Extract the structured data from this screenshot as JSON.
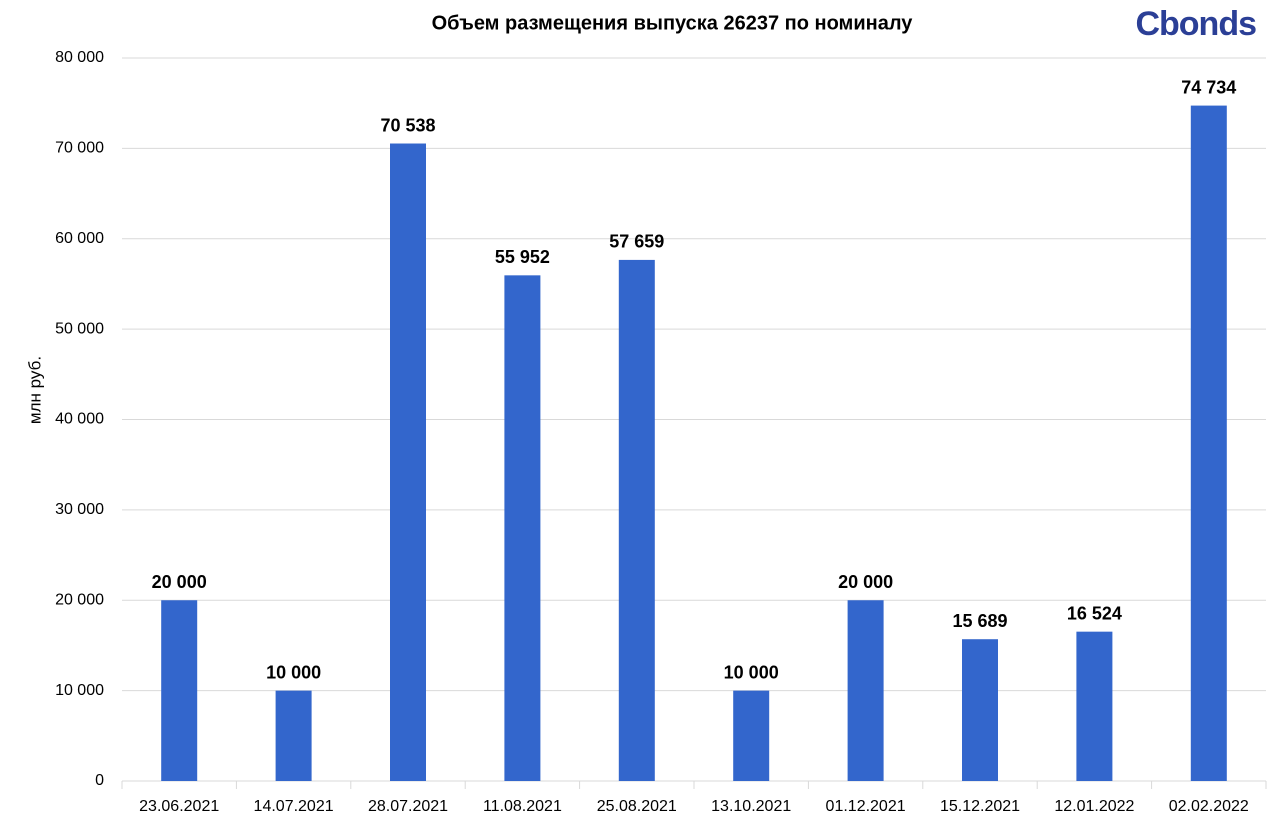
{
  "chart_data": {
    "type": "bar",
    "title": "Объем размещения выпуска 26237 по номиналу",
    "logo": "Cbonds",
    "ylabel": "млн руб.",
    "categories": [
      "23.06.2021",
      "14.07.2021",
      "28.07.2021",
      "11.08.2021",
      "25.08.2021",
      "13.10.2021",
      "01.12.2021",
      "15.12.2021",
      "12.01.2022",
      "02.02.2022"
    ],
    "values": [
      20000,
      10000,
      70538,
      55952,
      57659,
      10000,
      20000,
      15689,
      16524,
      74734
    ],
    "value_labels": [
      "20 000",
      "10 000",
      "70 538",
      "55 952",
      "57 659",
      "10 000",
      "20 000",
      "15 689",
      "16 524",
      "74 734"
    ],
    "color": "#3366cc",
    "ylim": [
      0,
      80000
    ],
    "yticks": [
      {
        "value": 0,
        "label": "0"
      },
      {
        "value": 10000,
        "label": "10 000"
      },
      {
        "value": 20000,
        "label": "20 000"
      },
      {
        "value": 30000,
        "label": "30 000"
      },
      {
        "value": 40000,
        "label": "40 000"
      },
      {
        "value": 50000,
        "label": "50 000"
      },
      {
        "value": 60000,
        "label": "60 000"
      },
      {
        "value": 70000,
        "label": "70 000"
      },
      {
        "value": 80000,
        "label": "80 000"
      }
    ],
    "grid": true
  }
}
